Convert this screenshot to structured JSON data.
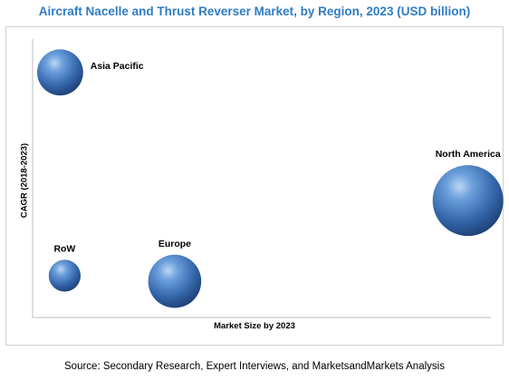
{
  "chart_data": {
    "type": "bubble",
    "title": "Aircraft Nacelle and Thrust Reverser Market, by Region, 2023 (USD billion)",
    "xlabel": "Market Size by 2023",
    "ylabel": "CAGR (2018-2023)",
    "grid": false,
    "axis_ticks": false,
    "legend": "none",
    "bubble_color": "#3a6fb0",
    "series": [
      {
        "name": "Asia Pacific",
        "x": 0.06,
        "y": 0.88,
        "size": 0.65,
        "label_position": "right"
      },
      {
        "name": "North America",
        "x": 0.95,
        "y": 0.42,
        "size": 1.0,
        "label_position": "top"
      },
      {
        "name": "RoW",
        "x": 0.07,
        "y": 0.15,
        "size": 0.45,
        "label_position": "top"
      },
      {
        "name": "Europe",
        "x": 0.31,
        "y": 0.13,
        "size": 0.75,
        "label_position": "top"
      }
    ]
  },
  "source": "Source: Secondary Research, Expert Interviews, and MarketsandMarkets Analysis"
}
